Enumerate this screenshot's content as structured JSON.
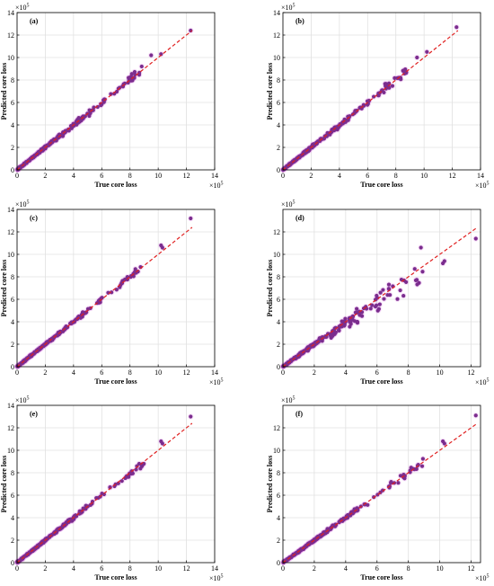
{
  "colors": {
    "points": "#7b2d8e",
    "point_glow": "#e9a6ee",
    "ref_line": "#e02020",
    "grid": "#e1e1e1",
    "axis": "#000000"
  },
  "chart_data": [
    {
      "type": "scatter",
      "panel": "(a)",
      "xlabel": "True core loss",
      "ylabel": "Predicted core loss",
      "multiplier": "×10",
      "multiplier_exp": "5",
      "xlim": [
        0,
        14
      ],
      "ylim": [
        0,
        14
      ],
      "x_ticks": [
        "0",
        "2",
        "4",
        "6",
        "8",
        "10",
        "12",
        "14"
      ],
      "y_ticks": [
        "0",
        "2",
        "4",
        "6",
        "8",
        "10",
        "12",
        "14"
      ],
      "reference_line": [
        [
          0,
          0
        ],
        [
          12.4,
          12.4
        ]
      ],
      "extreme_points": [
        [
          10.2,
          10.3
        ],
        [
          9.5,
          10.2
        ],
        [
          12.3,
          12.4
        ]
      ],
      "spread": 0.05
    },
    {
      "type": "scatter",
      "panel": "(b)",
      "xlabel": "True core loss",
      "ylabel": "Predicted core loss",
      "multiplier": "×10",
      "multiplier_exp": "5",
      "xlim": [
        0,
        14
      ],
      "ylim": [
        0,
        14
      ],
      "x_ticks": [
        "0",
        "2",
        "4",
        "6",
        "8",
        "10",
        "12",
        "14"
      ],
      "y_ticks": [
        "0",
        "2",
        "4",
        "6",
        "8",
        "10",
        "12",
        "14"
      ],
      "reference_line": [
        [
          0,
          0
        ],
        [
          12.4,
          12.4
        ]
      ],
      "extreme_points": [
        [
          10.2,
          10.5
        ],
        [
          9.5,
          10.0
        ],
        [
          12.3,
          12.7
        ]
      ],
      "spread": 0.05
    },
    {
      "type": "scatter",
      "panel": "(c)",
      "xlabel": "True core loss",
      "ylabel": "Predicted core loss",
      "multiplier": "×10",
      "multiplier_exp": "5",
      "xlim": [
        0,
        14
      ],
      "ylim": [
        0,
        14
      ],
      "x_ticks": [
        "0",
        "2",
        "4",
        "6",
        "8",
        "10",
        "12",
        "14"
      ],
      "y_ticks": [
        "0",
        "2",
        "4",
        "6",
        "8",
        "10",
        "12",
        "14"
      ],
      "reference_line": [
        [
          0,
          0
        ],
        [
          12.4,
          12.4
        ]
      ],
      "extreme_points": [
        [
          10.2,
          10.8
        ],
        [
          10.3,
          10.6
        ],
        [
          12.3,
          13.2
        ]
      ],
      "spread": 0.035
    },
    {
      "type": "scatter",
      "panel": "(d)",
      "xlabel": "True core loss",
      "ylabel": "Predicted core loss",
      "multiplier": "×10",
      "multiplier_exp": "5",
      "xlim": [
        0,
        12.6
      ],
      "ylim": [
        0,
        14
      ],
      "x_ticks": [
        "0",
        "2",
        "4",
        "6",
        "8",
        "10",
        "12"
      ],
      "y_ticks": [
        "0",
        "2",
        "4",
        "6",
        "8",
        "10",
        "12"
      ],
      "reference_line": [
        [
          0,
          0
        ],
        [
          12.4,
          12.4
        ]
      ],
      "extreme_points": [
        [
          8.8,
          10.6
        ],
        [
          10.3,
          9.4
        ],
        [
          10.2,
          9.2
        ],
        [
          12.3,
          11.4
        ]
      ],
      "spread": 0.09
    },
    {
      "type": "scatter",
      "panel": "(e)",
      "xlabel": "True core loss",
      "ylabel": "Predicted core loss",
      "multiplier": "×10",
      "multiplier_exp": "5",
      "xlim": [
        0,
        14
      ],
      "ylim": [
        0,
        14
      ],
      "x_ticks": [
        "0",
        "2",
        "4",
        "6",
        "8",
        "10",
        "12",
        "14"
      ],
      "y_ticks": [
        "0",
        "2",
        "4",
        "6",
        "8",
        "10",
        "12",
        "14"
      ],
      "reference_line": [
        [
          0,
          0
        ],
        [
          12.4,
          12.4
        ]
      ],
      "extreme_points": [
        [
          10.2,
          10.8
        ],
        [
          10.3,
          10.6
        ],
        [
          12.3,
          13.0
        ]
      ],
      "spread": 0.035
    },
    {
      "type": "scatter",
      "panel": "(f)",
      "xlabel": "True core loss",
      "ylabel": "Predicted core loss",
      "multiplier": "×10",
      "multiplier_exp": "5",
      "xlim": [
        0,
        12.6
      ],
      "ylim": [
        0,
        14
      ],
      "x_ticks": [
        "0",
        "2",
        "4",
        "6",
        "8",
        "10",
        "12"
      ],
      "y_ticks": [
        "0",
        "2",
        "4",
        "6",
        "8",
        "10",
        "12"
      ],
      "reference_line": [
        [
          0,
          0
        ],
        [
          12.4,
          12.4
        ]
      ],
      "extreme_points": [
        [
          10.2,
          10.8
        ],
        [
          10.3,
          10.6
        ],
        [
          12.3,
          13.1
        ]
      ],
      "spread": 0.04
    }
  ]
}
